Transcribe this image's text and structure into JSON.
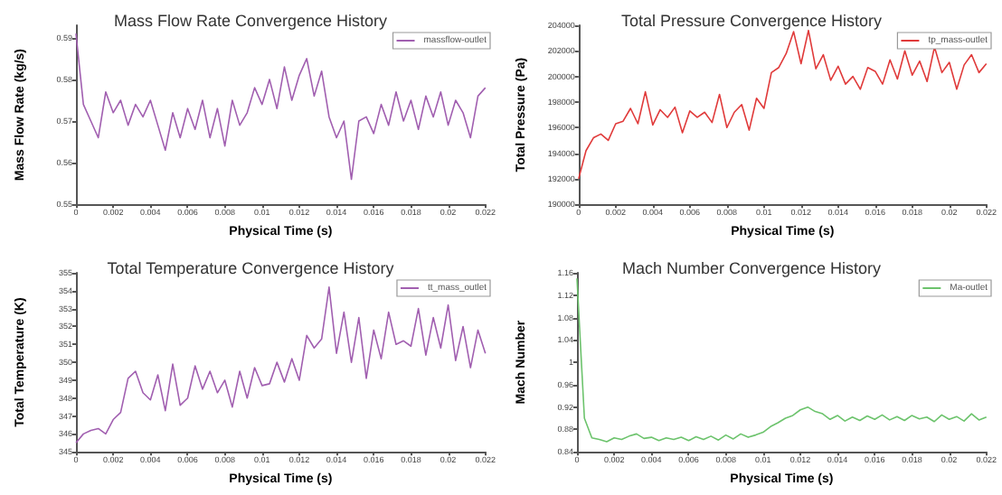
{
  "chart_data": [
    {
      "type": "line",
      "title": "Mass Flow Rate Convergence History",
      "xlabel": "Physical Time (s)",
      "ylabel": "Mass Flow Rate (kg/s)",
      "legend": "top right",
      "grid": false,
      "xlim": [
        0,
        0.022
      ],
      "xticks": [
        0,
        0.002,
        0.004,
        0.006,
        0.008,
        0.01,
        0.012,
        0.014,
        0.016,
        0.018,
        0.02,
        0.022
      ],
      "ylim": [
        0.55,
        0.593
      ],
      "yticks": [
        0.55,
        0.56,
        0.57,
        0.58,
        0.59
      ],
      "x": [
        0,
        0.0004,
        0.0008,
        0.0012,
        0.0016,
        0.002,
        0.0024,
        0.0028,
        0.0032,
        0.0036,
        0.004,
        0.0044,
        0.0048,
        0.0052,
        0.0056,
        0.006,
        0.0064,
        0.0068,
        0.0072,
        0.0076,
        0.008,
        0.0084,
        0.0088,
        0.0092,
        0.0096,
        0.01,
        0.0104,
        0.0108,
        0.0112,
        0.0116,
        0.012,
        0.0124,
        0.0128,
        0.0132,
        0.0136,
        0.014,
        0.0144,
        0.0148,
        0.0152,
        0.0156,
        0.016,
        0.0164,
        0.0168,
        0.0172,
        0.0176,
        0.018,
        0.0184,
        0.0188,
        0.0192,
        0.0196,
        0.02,
        0.0204,
        0.0208,
        0.0212,
        0.0216,
        0.022
      ],
      "series": [
        {
          "name": "massflow-outlet",
          "color": "#a15fb0",
          "values": [
            0.591,
            0.574,
            0.57,
            0.566,
            0.577,
            0.572,
            0.575,
            0.569,
            0.574,
            0.571,
            0.575,
            0.569,
            0.563,
            0.572,
            0.566,
            0.573,
            0.568,
            0.575,
            0.566,
            0.573,
            0.564,
            0.575,
            0.569,
            0.572,
            0.578,
            0.574,
            0.58,
            0.573,
            0.583,
            0.575,
            0.581,
            0.585,
            0.576,
            0.582,
            0.571,
            0.566,
            0.57,
            0.556,
            0.57,
            0.571,
            0.567,
            0.574,
            0.569,
            0.577,
            0.57,
            0.575,
            0.568,
            0.576,
            0.571,
            0.577,
            0.569,
            0.575,
            0.572,
            0.566,
            0.576,
            0.578
          ]
        }
      ]
    },
    {
      "type": "line",
      "title": "Total Pressure Convergence History",
      "xlabel": "Physical Time (s)",
      "ylabel": "Total Pressure (Pa)",
      "legend": "top right",
      "grid": false,
      "xlim": [
        0,
        0.022
      ],
      "xticks": [
        0,
        0.002,
        0.004,
        0.006,
        0.008,
        0.01,
        0.012,
        0.014,
        0.016,
        0.018,
        0.02,
        0.022
      ],
      "ylim": [
        190000,
        204000
      ],
      "yticks": [
        190000,
        192000,
        194000,
        196000,
        198000,
        200000,
        202000,
        204000
      ],
      "x": [
        0,
        0.0004,
        0.0008,
        0.0012,
        0.0016,
        0.002,
        0.0024,
        0.0028,
        0.0032,
        0.0036,
        0.004,
        0.0044,
        0.0048,
        0.0052,
        0.0056,
        0.006,
        0.0064,
        0.0068,
        0.0072,
        0.0076,
        0.008,
        0.0084,
        0.0088,
        0.0092,
        0.0096,
        0.01,
        0.0104,
        0.0108,
        0.0112,
        0.0116,
        0.012,
        0.0124,
        0.0128,
        0.0132,
        0.0136,
        0.014,
        0.0144,
        0.0148,
        0.0152,
        0.0156,
        0.016,
        0.0164,
        0.0168,
        0.0172,
        0.0176,
        0.018,
        0.0184,
        0.0188,
        0.0192,
        0.0196,
        0.02,
        0.0204,
        0.0208,
        0.0212,
        0.0216,
        0.022
      ],
      "series": [
        {
          "name": "tp_mass-outlet",
          "color": "#e03a3a",
          "values": [
            192000,
            194200,
            195200,
            195500,
            195000,
            196300,
            196500,
            197500,
            196300,
            198800,
            196200,
            197400,
            196800,
            197600,
            195600,
            197300,
            196800,
            197200,
            196400,
            198600,
            196000,
            197200,
            197800,
            195800,
            198300,
            197500,
            200300,
            200700,
            201800,
            203500,
            201000,
            203600,
            200600,
            201700,
            199700,
            200800,
            199400,
            200000,
            199000,
            200700,
            200400,
            199400,
            201300,
            199800,
            202000,
            200100,
            201200,
            199600,
            202300,
            200300,
            201100,
            199000,
            200900,
            201700,
            200300,
            201000
          ]
        }
      ]
    },
    {
      "type": "line",
      "title": "Total Temperature Convergence History",
      "xlabel": "Physical Time (s)",
      "ylabel": "Total Temperature (K)",
      "legend": "top right",
      "grid": false,
      "xlim": [
        0,
        0.022
      ],
      "xticks": [
        0,
        0.002,
        0.004,
        0.006,
        0.008,
        0.01,
        0.012,
        0.014,
        0.016,
        0.018,
        0.02,
        0.022
      ],
      "ylim": [
        345,
        355
      ],
      "yticks": [
        345,
        346,
        347,
        348,
        349,
        350,
        351,
        352,
        353,
        354,
        355
      ],
      "x": [
        0,
        0.0004,
        0.0008,
        0.0012,
        0.0016,
        0.002,
        0.0024,
        0.0028,
        0.0032,
        0.0036,
        0.004,
        0.0044,
        0.0048,
        0.0052,
        0.0056,
        0.006,
        0.0064,
        0.0068,
        0.0072,
        0.0076,
        0.008,
        0.0084,
        0.0088,
        0.0092,
        0.0096,
        0.01,
        0.0104,
        0.0108,
        0.0112,
        0.0116,
        0.012,
        0.0124,
        0.0128,
        0.0132,
        0.0136,
        0.014,
        0.0144,
        0.0148,
        0.0152,
        0.0156,
        0.016,
        0.0164,
        0.0168,
        0.0172,
        0.0176,
        0.018,
        0.0184,
        0.0188,
        0.0192,
        0.0196,
        0.02,
        0.0204,
        0.0208,
        0.0212,
        0.0216,
        0.022
      ],
      "series": [
        {
          "name": "tt_mass_outlet",
          "color": "#a15fb0",
          "values": [
            345.5,
            346.0,
            346.2,
            346.3,
            346.0,
            346.8,
            347.2,
            349.1,
            349.5,
            348.3,
            347.9,
            349.3,
            347.3,
            349.9,
            347.6,
            348.0,
            349.8,
            348.5,
            349.5,
            348.3,
            349.0,
            347.5,
            349.5,
            348.0,
            349.7,
            348.7,
            348.8,
            350.0,
            348.9,
            350.2,
            349.0,
            351.5,
            350.8,
            351.3,
            354.2,
            350.5,
            352.8,
            350.0,
            352.5,
            349.1,
            351.8,
            350.2,
            352.8,
            351.0,
            351.2,
            350.9,
            353.0,
            350.4,
            352.5,
            350.8,
            353.2,
            350.1,
            352.0,
            349.7,
            351.8,
            350.5
          ]
        }
      ]
    },
    {
      "type": "line",
      "title": "Mach Number Convergence History",
      "xlabel": "Physical Time (s)",
      "ylabel": "Mach Number",
      "legend": "top right",
      "grid": false,
      "xlim": [
        0,
        0.022
      ],
      "xticks": [
        0,
        0.002,
        0.004,
        0.006,
        0.008,
        0.01,
        0.012,
        0.014,
        0.016,
        0.018,
        0.02,
        0.022
      ],
      "ylim": [
        0.84,
        1.16
      ],
      "yticks": [
        0.84,
        0.88,
        0.92,
        0.96,
        1,
        1.04,
        1.08,
        1.12,
        1.16
      ],
      "x": [
        0,
        0.0004,
        0.0008,
        0.0012,
        0.0016,
        0.002,
        0.0024,
        0.0028,
        0.0032,
        0.0036,
        0.004,
        0.0044,
        0.0048,
        0.0052,
        0.0056,
        0.006,
        0.0064,
        0.0068,
        0.0072,
        0.0076,
        0.008,
        0.0084,
        0.0088,
        0.0092,
        0.0096,
        0.01,
        0.0104,
        0.0108,
        0.0112,
        0.0116,
        0.012,
        0.0124,
        0.0128,
        0.0132,
        0.0136,
        0.014,
        0.0144,
        0.0148,
        0.0152,
        0.0156,
        0.016,
        0.0164,
        0.0168,
        0.0172,
        0.0176,
        0.018,
        0.0184,
        0.0188,
        0.0192,
        0.0196,
        0.02,
        0.0204,
        0.0208,
        0.0212,
        0.0216,
        0.022
      ],
      "series": [
        {
          "name": "Ma-outlet",
          "color": "#6cc36c",
          "values": [
            1.15,
            0.9,
            0.865,
            0.862,
            0.858,
            0.865,
            0.862,
            0.868,
            0.872,
            0.864,
            0.866,
            0.86,
            0.865,
            0.862,
            0.866,
            0.86,
            0.867,
            0.862,
            0.868,
            0.861,
            0.87,
            0.863,
            0.872,
            0.866,
            0.87,
            0.875,
            0.885,
            0.892,
            0.9,
            0.905,
            0.915,
            0.92,
            0.912,
            0.908,
            0.898,
            0.905,
            0.895,
            0.902,
            0.896,
            0.904,
            0.898,
            0.906,
            0.897,
            0.903,
            0.896,
            0.905,
            0.899,
            0.902,
            0.894,
            0.906,
            0.898,
            0.903,
            0.895,
            0.908,
            0.897,
            0.902
          ]
        }
      ]
    }
  ]
}
